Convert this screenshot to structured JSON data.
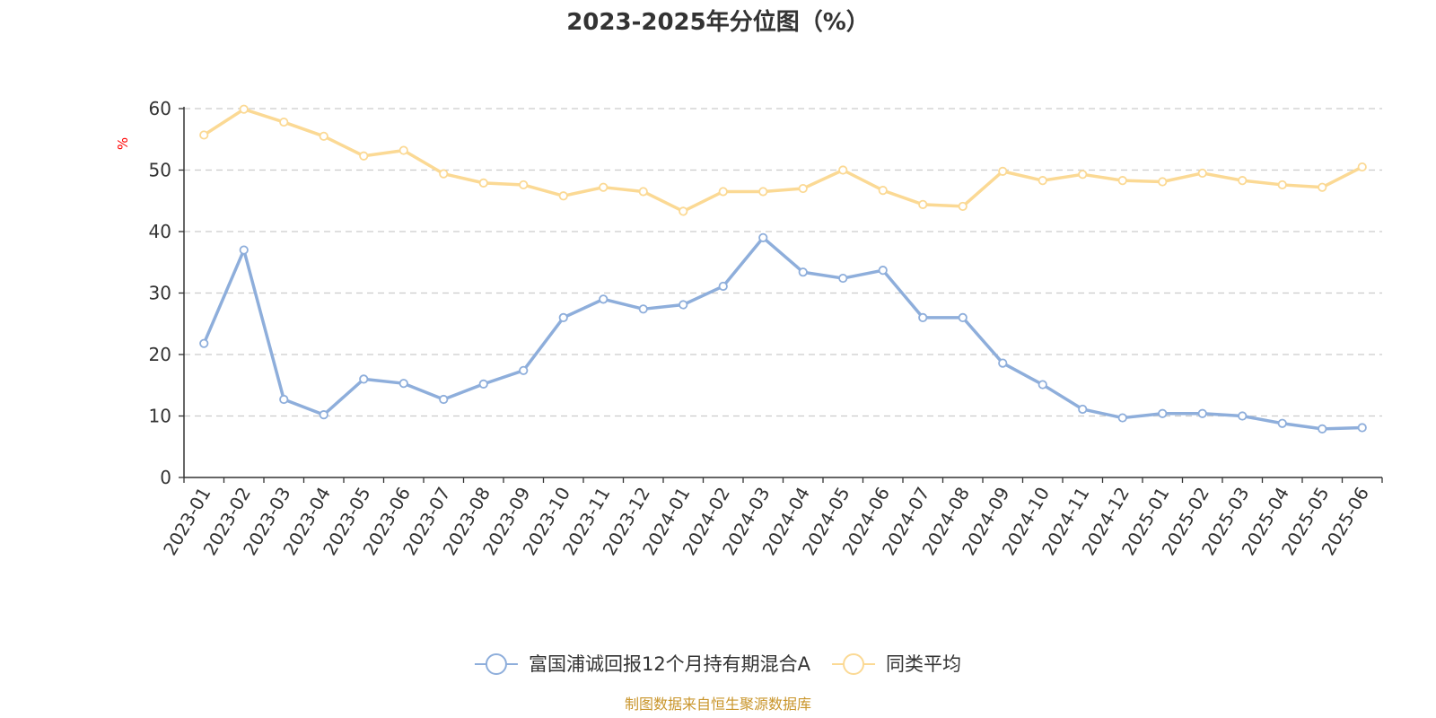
{
  "chart_data": {
    "type": "line",
    "title": "2023-2025年分位图（%）",
    "ylabel": "%",
    "ylim": [
      0,
      60
    ],
    "yticks": [
      0,
      10,
      20,
      30,
      40,
      50,
      60
    ],
    "grid": "horizontal dashed",
    "legend_position": "bottom-center",
    "categories": [
      "2023-01",
      "2023-02",
      "2023-03",
      "2023-04",
      "2023-05",
      "2023-06",
      "2023-07",
      "2023-08",
      "2023-09",
      "2023-10",
      "2023-11",
      "2023-12",
      "2024-01",
      "2024-02",
      "2024-03",
      "2024-04",
      "2024-05",
      "2024-06",
      "2024-07",
      "2024-08",
      "2024-09",
      "2024-10",
      "2024-11",
      "2024-12",
      "2025-01",
      "2025-02",
      "2025-03",
      "2025-04",
      "2025-05",
      "2025-06"
    ],
    "series": [
      {
        "name": "富国浦诚回报12个月持有期混合A",
        "color": "#8eaedb",
        "values": [
          21.8,
          37.0,
          12.7,
          10.2,
          16.0,
          15.3,
          12.7,
          15.2,
          17.4,
          26.0,
          29.0,
          27.4,
          28.1,
          31.1,
          39.0,
          33.4,
          32.4,
          33.7,
          26.0,
          26.0,
          18.6,
          15.1,
          11.1,
          9.7,
          10.4,
          10.4,
          10.0,
          8.8,
          7.9,
          8.1
        ]
      },
      {
        "name": "同类平均",
        "color": "#fbd994",
        "values": [
          55.7,
          59.9,
          57.8,
          55.5,
          52.3,
          53.2,
          49.4,
          47.9,
          47.6,
          45.8,
          47.2,
          46.5,
          43.3,
          46.5,
          46.5,
          47.0,
          50.0,
          46.7,
          44.4,
          44.1,
          49.8,
          48.3,
          49.3,
          48.3,
          48.1,
          49.5,
          48.3,
          47.6,
          47.2,
          50.5
        ]
      }
    ]
  },
  "colors": {
    "axis": "#333333",
    "grid": "#cccccc",
    "unit_label": "#ff0000",
    "source_text": "#c9952b"
  },
  "source": "制图数据来自恒生聚源数据库"
}
